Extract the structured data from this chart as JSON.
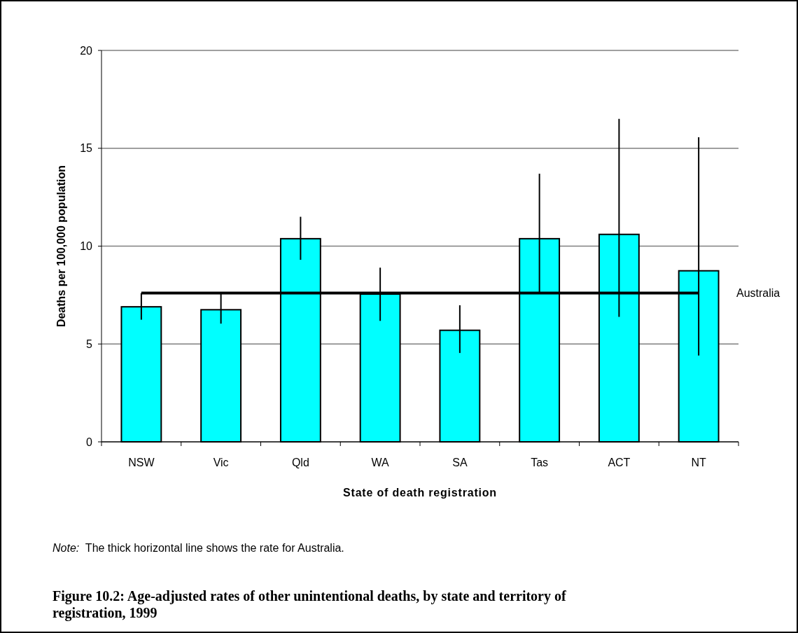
{
  "chart_data": {
    "type": "bar",
    "title": "Figure 10.2: Age-adjusted rates of other unintentional deaths, by state and territory of registration, 1999",
    "xlabel": "State of death registration",
    "ylabel": "Deaths per 100,000 population",
    "categories": [
      "NSW",
      "Vic",
      "Qld",
      "WA",
      "SA",
      "Tas",
      "ACT",
      "NT"
    ],
    "values": [
      6.9,
      6.75,
      10.38,
      7.55,
      5.7,
      10.38,
      10.6,
      8.74
    ],
    "errors": [
      [
        6.24,
        7.6
      ],
      [
        6.04,
        7.6
      ],
      [
        9.3,
        11.5
      ],
      [
        6.18,
        8.9
      ],
      [
        4.54,
        6.98
      ],
      [
        7.6,
        13.7
      ],
      [
        6.39,
        16.5
      ],
      [
        4.41,
        15.56
      ]
    ],
    "color": "#00ffff",
    "ylim": [
      0,
      20
    ],
    "yticks": [
      0,
      5,
      10,
      15,
      20
    ],
    "grid": "y",
    "ref_lines": [
      {
        "axis": "y",
        "value": 7.6,
        "label": "Australia"
      }
    ],
    "annotations": [
      "Note:  The thick horizontal line shows the rate for Australia."
    ]
  }
}
